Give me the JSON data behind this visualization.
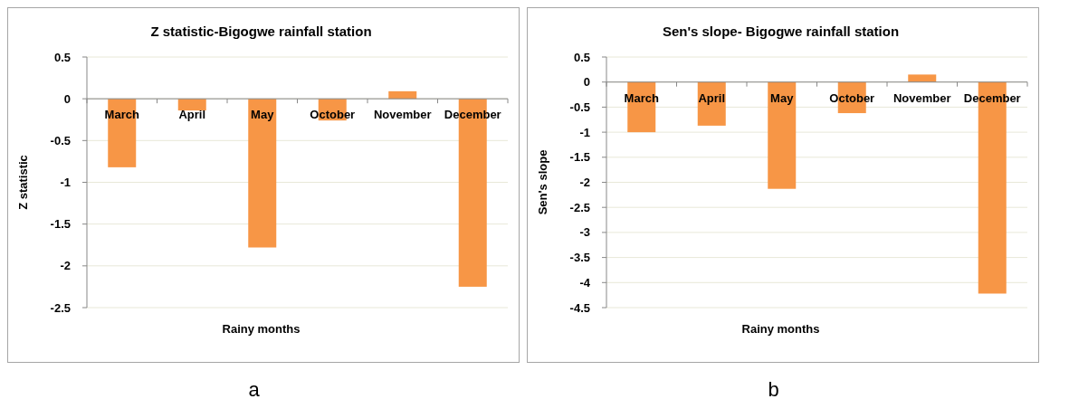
{
  "chart_data": [
    {
      "type": "bar",
      "title": "Z statistic-Bigogwe rainfall station",
      "xlabel": "Rainy months",
      "ylabel": "Z statistic",
      "categories": [
        "March",
        "April",
        "May",
        "October",
        "November",
        "December"
      ],
      "series": [
        {
          "color": "#f79646",
          "values": [
            -0.82,
            -0.14,
            -1.78,
            -0.26,
            0.09,
            -2.25
          ]
        }
      ],
      "ylim": [
        -2.5,
        0.5
      ],
      "yticks": [
        -2.5,
        -2,
        -1.5,
        -1,
        -0.5,
        0,
        0.5
      ],
      "grid": "y",
      "annotations": [
        "a"
      ]
    },
    {
      "type": "bar",
      "title": "Sen's slope- Bigogwe rainfall station",
      "xlabel": "Rainy months",
      "ylabel": "Sen's slope",
      "categories": [
        "March",
        "April",
        "May",
        "October",
        "November",
        "December"
      ],
      "series": [
        {
          "color": "#f79646",
          "values": [
            -1.0,
            -0.87,
            -2.13,
            -0.62,
            0.15,
            -4.22
          ]
        }
      ],
      "ylim": [
        -4.5,
        0.5
      ],
      "yticks": [
        -4.5,
        -4,
        -3.5,
        -3,
        -2.5,
        -2,
        -1.5,
        -1,
        -0.5,
        0,
        0.5
      ],
      "grid": "y",
      "annotations": [
        "b"
      ]
    }
  ]
}
